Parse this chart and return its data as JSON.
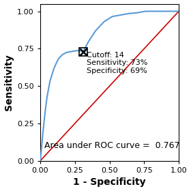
{
  "title": "",
  "xlabel": "1 - Specificity",
  "ylabel": "Sensitivity",
  "auc_text": "Area under ROC curve =  0.767",
  "cutoff_point": [
    0.31,
    0.73
  ],
  "cutoff_label": "Cutoff: 14\nSensitivity: 73%\nSpecificity: 69%",
  "roc_color": "#5b9bd5",
  "diag_color": "#cc0000",
  "marker_color": "#000000",
  "xlim": [
    0.0,
    1.0
  ],
  "ylim": [
    0.0,
    1.05
  ],
  "xticks": [
    0.0,
    0.25,
    0.5,
    0.75,
    1.0
  ],
  "yticks": [
    0.0,
    0.25,
    0.5,
    0.75,
    1.0
  ],
  "roc_x": [
    0.0,
    0.005,
    0.01,
    0.015,
    0.02,
    0.03,
    0.04,
    0.05,
    0.07,
    0.1,
    0.13,
    0.16,
    0.19,
    0.22,
    0.25,
    0.28,
    0.31,
    0.35,
    0.4,
    0.46,
    0.52,
    0.58,
    0.64,
    0.7,
    0.76,
    0.8,
    0.82,
    1.0
  ],
  "roc_y": [
    0.0,
    0.04,
    0.09,
    0.14,
    0.19,
    0.28,
    0.36,
    0.43,
    0.53,
    0.62,
    0.68,
    0.71,
    0.725,
    0.73,
    0.735,
    0.738,
    0.73,
    0.8,
    0.87,
    0.93,
    0.965,
    0.975,
    0.985,
    0.99,
    1.0,
    1.0,
    1.0,
    1.0
  ],
  "figsize": [
    2.8,
    2.8
  ],
  "dpi": 100,
  "label_fontsize": 10,
  "tick_fontsize": 8,
  "auc_fontsize": 9,
  "annot_fontsize": 8
}
